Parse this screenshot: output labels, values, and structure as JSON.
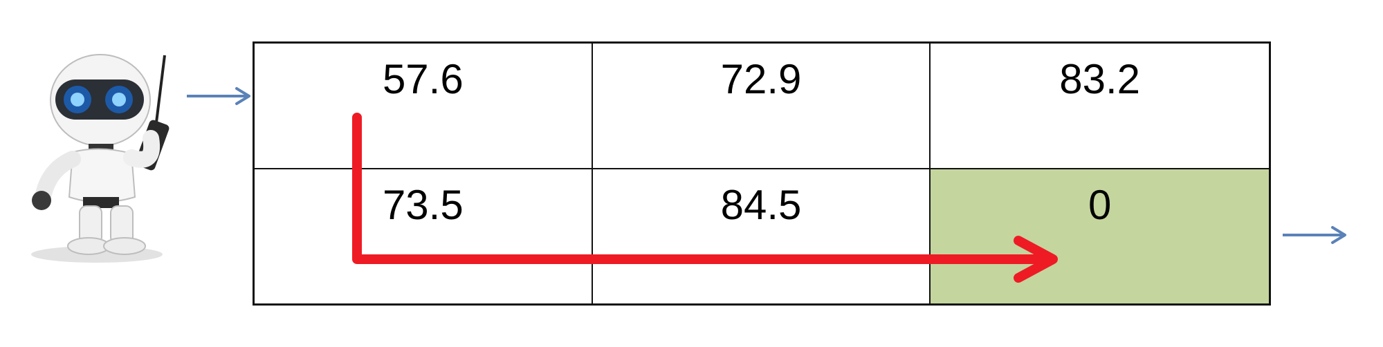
{
  "grid": {
    "rows": [
      [
        "57.6",
        "72.9",
        "83.2"
      ],
      [
        "73.5",
        "84.5",
        "0"
      ]
    ],
    "goal_cell": {
      "row": 1,
      "col": 2,
      "color": "#c4d59e"
    }
  },
  "colors": {
    "path_arrow": "#ee1b24",
    "entry_exit_arrow": "#5a82b8",
    "grid_line": "#111111"
  },
  "icons": [
    "robot-agent-icon",
    "entry-arrow-icon",
    "exit-arrow-icon",
    "path-arrow-icon"
  ]
}
